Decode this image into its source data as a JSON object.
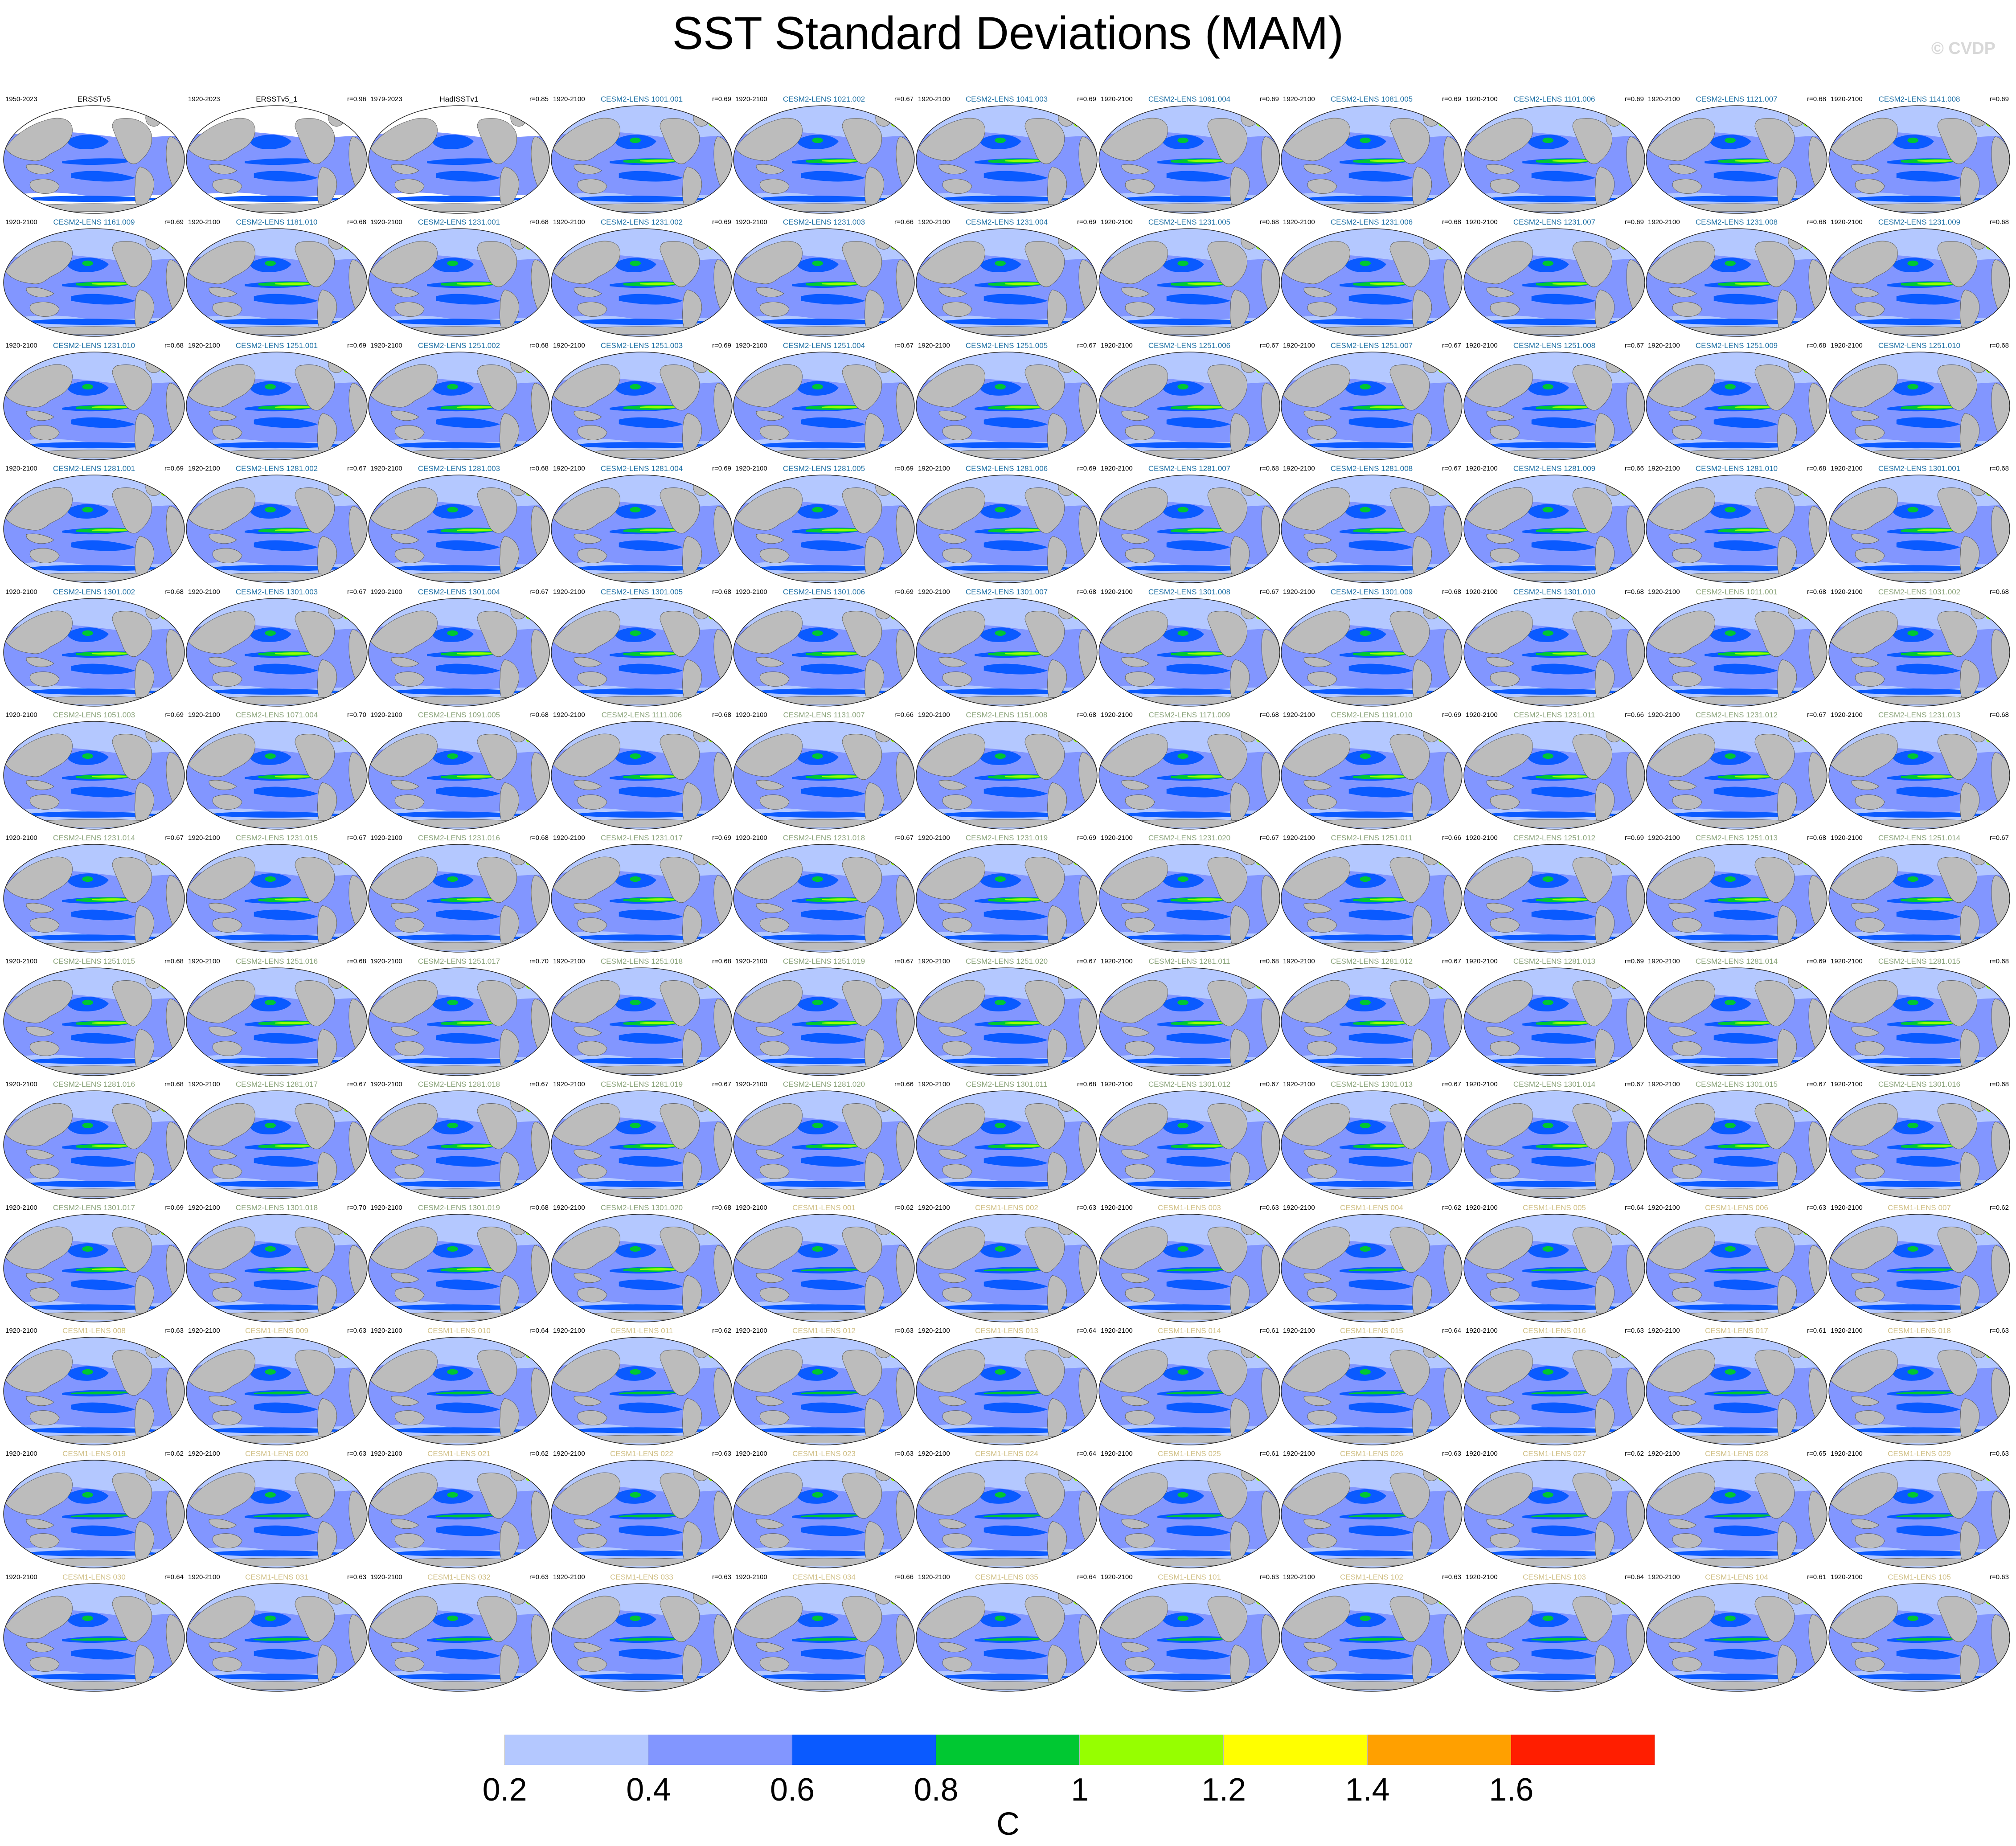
{
  "title": "SST Standard Deviations (MAM)",
  "copyright": "© CVDP",
  "legend": {
    "units": "C",
    "ticks": [
      "0.2",
      "0.4",
      "0.6",
      "0.8",
      "1",
      "1.2",
      "1.4",
      "1.6"
    ],
    "colors": [
      "#ffffff",
      "#b4c8ff",
      "#8296ff",
      "#0a5aff",
      "#00c832",
      "#96ff00",
      "#ffff00",
      "#ffa000",
      "#ff1e00"
    ]
  },
  "colors": {
    "land": "#bcbcbc",
    "ocean_low": "#b4c8ff",
    "ocean_mid": "#8296ff",
    "ocean_high": "#0a5aff",
    "obs_label": "#000000",
    "cesm2_smbb": "#1b6ea3",
    "cesm2_cmip6": "#8aa37a",
    "cesm1": "#d0bf85"
  },
  "panels": [
    {
      "period": "1950-2023",
      "name": "ERSSTv5",
      "r": ""
    },
    {
      "period": "1920-2023",
      "name": "ERSSTv5_1",
      "r": "r=0.96"
    },
    {
      "period": "1979-2023",
      "name": "HadISSTv1",
      "r": "r=0.85"
    },
    {
      "period": "1920-2100",
      "name": "CESM2-LENS 1001.001",
      "r": "r=0.69"
    },
    {
      "period": "1920-2100",
      "name": "CESM2-LENS 1021.002",
      "r": "r=0.67"
    },
    {
      "period": "1920-2100",
      "name": "CESM2-LENS 1041.003",
      "r": "r=0.69"
    },
    {
      "period": "1920-2100",
      "name": "CESM2-LENS 1061.004",
      "r": "r=0.69"
    },
    {
      "period": "1920-2100",
      "name": "CESM2-LENS 1081.005",
      "r": "r=0.69"
    },
    {
      "period": "1920-2100",
      "name": "CESM2-LENS 1101.006",
      "r": "r=0.69"
    },
    {
      "period": "1920-2100",
      "name": "CESM2-LENS 1121.007",
      "r": "r=0.68"
    },
    {
      "period": "1920-2100",
      "name": "CESM2-LENS 1141.008",
      "r": "r=0.69"
    },
    {
      "period": "1920-2100",
      "name": "CESM2-LENS 1161.009",
      "r": "r=0.69"
    },
    {
      "period": "1920-2100",
      "name": "CESM2-LENS 1181.010",
      "r": "r=0.68"
    },
    {
      "period": "1920-2100",
      "name": "CESM2-LENS 1231.001",
      "r": "r=0.68"
    },
    {
      "period": "1920-2100",
      "name": "CESM2-LENS 1231.002",
      "r": "r=0.69"
    },
    {
      "period": "1920-2100",
      "name": "CESM2-LENS 1231.003",
      "r": "r=0.66"
    },
    {
      "period": "1920-2100",
      "name": "CESM2-LENS 1231.004",
      "r": "r=0.69"
    },
    {
      "period": "1920-2100",
      "name": "CESM2-LENS 1231.005",
      "r": "r=0.68"
    },
    {
      "period": "1920-2100",
      "name": "CESM2-LENS 1231.006",
      "r": "r=0.68"
    },
    {
      "period": "1920-2100",
      "name": "CESM2-LENS 1231.007",
      "r": "r=0.69"
    },
    {
      "period": "1920-2100",
      "name": "CESM2-LENS 1231.008",
      "r": "r=0.68"
    },
    {
      "period": "1920-2100",
      "name": "CESM2-LENS 1231.009",
      "r": "r=0.68"
    },
    {
      "period": "1920-2100",
      "name": "CESM2-LENS 1231.010",
      "r": "r=0.68"
    },
    {
      "period": "1920-2100",
      "name": "CESM2-LENS 1251.001",
      "r": "r=0.69"
    },
    {
      "period": "1920-2100",
      "name": "CESM2-LENS 1251.002",
      "r": "r=0.68"
    },
    {
      "period": "1920-2100",
      "name": "CESM2-LENS 1251.003",
      "r": "r=0.69"
    },
    {
      "period": "1920-2100",
      "name": "CESM2-LENS 1251.004",
      "r": "r=0.67"
    },
    {
      "period": "1920-2100",
      "name": "CESM2-LENS 1251.005",
      "r": "r=0.67"
    },
    {
      "period": "1920-2100",
      "name": "CESM2-LENS 1251.006",
      "r": "r=0.67"
    },
    {
      "period": "1920-2100",
      "name": "CESM2-LENS 1251.007",
      "r": "r=0.67"
    },
    {
      "period": "1920-2100",
      "name": "CESM2-LENS 1251.008",
      "r": "r=0.67"
    },
    {
      "period": "1920-2100",
      "name": "CESM2-LENS 1251.009",
      "r": "r=0.68"
    },
    {
      "period": "1920-2100",
      "name": "CESM2-LENS 1251.010",
      "r": "r=0.68"
    },
    {
      "period": "1920-2100",
      "name": "CESM2-LENS 1281.001",
      "r": "r=0.69"
    },
    {
      "period": "1920-2100",
      "name": "CESM2-LENS 1281.002",
      "r": "r=0.67"
    },
    {
      "period": "1920-2100",
      "name": "CESM2-LENS 1281.003",
      "r": "r=0.68"
    },
    {
      "period": "1920-2100",
      "name": "CESM2-LENS 1281.004",
      "r": "r=0.69"
    },
    {
      "period": "1920-2100",
      "name": "CESM2-LENS 1281.005",
      "r": "r=0.69"
    },
    {
      "period": "1920-2100",
      "name": "CESM2-LENS 1281.006",
      "r": "r=0.69"
    },
    {
      "period": "1920-2100",
      "name": "CESM2-LENS 1281.007",
      "r": "r=0.68"
    },
    {
      "period": "1920-2100",
      "name": "CESM2-LENS 1281.008",
      "r": "r=0.67"
    },
    {
      "period": "1920-2100",
      "name": "CESM2-LENS 1281.009",
      "r": "r=0.66"
    },
    {
      "period": "1920-2100",
      "name": "CESM2-LENS 1281.010",
      "r": "r=0.68"
    },
    {
      "period": "1920-2100",
      "name": "CESM2-LENS 1301.001",
      "r": "r=0.68"
    },
    {
      "period": "1920-2100",
      "name": "CESM2-LENS 1301.002",
      "r": "r=0.68"
    },
    {
      "period": "1920-2100",
      "name": "CESM2-LENS 1301.003",
      "r": "r=0.67"
    },
    {
      "period": "1920-2100",
      "name": "CESM2-LENS 1301.004",
      "r": "r=0.67"
    },
    {
      "period": "1920-2100",
      "name": "CESM2-LENS 1301.005",
      "r": "r=0.68"
    },
    {
      "period": "1920-2100",
      "name": "CESM2-LENS 1301.006",
      "r": "r=0.69"
    },
    {
      "period": "1920-2100",
      "name": "CESM2-LENS 1301.007",
      "r": "r=0.68"
    },
    {
      "period": "1920-2100",
      "name": "CESM2-LENS 1301.008",
      "r": "r=0.67"
    },
    {
      "period": "1920-2100",
      "name": "CESM2-LENS 1301.009",
      "r": "r=0.68"
    },
    {
      "period": "1920-2100",
      "name": "CESM2-LENS 1301.010",
      "r": "r=0.68"
    },
    {
      "period": "1920-2100",
      "name": "CESM2-LENS 1011.001",
      "r": "r=0.68"
    },
    {
      "period": "1920-2100",
      "name": "CESM2-LENS 1031.002",
      "r": "r=0.68"
    },
    {
      "period": "1920-2100",
      "name": "CESM2-LENS 1051.003",
      "r": "r=0.69"
    },
    {
      "period": "1920-2100",
      "name": "CESM2-LENS 1071.004",
      "r": "r=0.70"
    },
    {
      "period": "1920-2100",
      "name": "CESM2-LENS 1091.005",
      "r": "r=0.68"
    },
    {
      "period": "1920-2100",
      "name": "CESM2-LENS 1111.006",
      "r": "r=0.68"
    },
    {
      "period": "1920-2100",
      "name": "CESM2-LENS 1131.007",
      "r": "r=0.66"
    },
    {
      "period": "1920-2100",
      "name": "CESM2-LENS 1151.008",
      "r": "r=0.68"
    },
    {
      "period": "1920-2100",
      "name": "CESM2-LENS 1171.009",
      "r": "r=0.68"
    },
    {
      "period": "1920-2100",
      "name": "CESM2-LENS 1191.010",
      "r": "r=0.69"
    },
    {
      "period": "1920-2100",
      "name": "CESM2-LENS 1231.011",
      "r": "r=0.66"
    },
    {
      "period": "1920-2100",
      "name": "CESM2-LENS 1231.012",
      "r": "r=0.67"
    },
    {
      "period": "1920-2100",
      "name": "CESM2-LENS 1231.013",
      "r": "r=0.68"
    },
    {
      "period": "1920-2100",
      "name": "CESM2-LENS 1231.014",
      "r": "r=0.67"
    },
    {
      "period": "1920-2100",
      "name": "CESM2-LENS 1231.015",
      "r": "r=0.67"
    },
    {
      "period": "1920-2100",
      "name": "CESM2-LENS 1231.016",
      "r": "r=0.68"
    },
    {
      "period": "1920-2100",
      "name": "CESM2-LENS 1231.017",
      "r": "r=0.69"
    },
    {
      "period": "1920-2100",
      "name": "CESM2-LENS 1231.018",
      "r": "r=0.67"
    },
    {
      "period": "1920-2100",
      "name": "CESM2-LENS 1231.019",
      "r": "r=0.69"
    },
    {
      "period": "1920-2100",
      "name": "CESM2-LENS 1231.020",
      "r": "r=0.67"
    },
    {
      "period": "1920-2100",
      "name": "CESM2-LENS 1251.011",
      "r": "r=0.66"
    },
    {
      "period": "1920-2100",
      "name": "CESM2-LENS 1251.012",
      "r": "r=0.69"
    },
    {
      "period": "1920-2100",
      "name": "CESM2-LENS 1251.013",
      "r": "r=0.68"
    },
    {
      "period": "1920-2100",
      "name": "CESM2-LENS 1251.014",
      "r": "r=0.67"
    },
    {
      "period": "1920-2100",
      "name": "CESM2-LENS 1251.015",
      "r": "r=0.68"
    },
    {
      "period": "1920-2100",
      "name": "CESM2-LENS 1251.016",
      "r": "r=0.68"
    },
    {
      "period": "1920-2100",
      "name": "CESM2-LENS 1251.017",
      "r": "r=0.70"
    },
    {
      "period": "1920-2100",
      "name": "CESM2-LENS 1251.018",
      "r": "r=0.68"
    },
    {
      "period": "1920-2100",
      "name": "CESM2-LENS 1251.019",
      "r": "r=0.67"
    },
    {
      "period": "1920-2100",
      "name": "CESM2-LENS 1251.020",
      "r": "r=0.67"
    },
    {
      "period": "1920-2100",
      "name": "CESM2-LENS 1281.011",
      "r": "r=0.68"
    },
    {
      "period": "1920-2100",
      "name": "CESM2-LENS 1281.012",
      "r": "r=0.67"
    },
    {
      "period": "1920-2100",
      "name": "CESM2-LENS 1281.013",
      "r": "r=0.69"
    },
    {
      "period": "1920-2100",
      "name": "CESM2-LENS 1281.014",
      "r": "r=0.69"
    },
    {
      "period": "1920-2100",
      "name": "CESM2-LENS 1281.015",
      "r": "r=0.68"
    },
    {
      "period": "1920-2100",
      "name": "CESM2-LENS 1281.016",
      "r": "r=0.68"
    },
    {
      "period": "1920-2100",
      "name": "CESM2-LENS 1281.017",
      "r": "r=0.67"
    },
    {
      "period": "1920-2100",
      "name": "CESM2-LENS 1281.018",
      "r": "r=0.67"
    },
    {
      "period": "1920-2100",
      "name": "CESM2-LENS 1281.019",
      "r": "r=0.67"
    },
    {
      "period": "1920-2100",
      "name": "CESM2-LENS 1281.020",
      "r": "r=0.66"
    },
    {
      "period": "1920-2100",
      "name": "CESM2-LENS 1301.011",
      "r": "r=0.68"
    },
    {
      "period": "1920-2100",
      "name": "CESM2-LENS 1301.012",
      "r": "r=0.67"
    },
    {
      "period": "1920-2100",
      "name": "CESM2-LENS 1301.013",
      "r": "r=0.67"
    },
    {
      "period": "1920-2100",
      "name": "CESM2-LENS 1301.014",
      "r": "r=0.67"
    },
    {
      "period": "1920-2100",
      "name": "CESM2-LENS 1301.015",
      "r": "r=0.67"
    },
    {
      "period": "1920-2100",
      "name": "CESM2-LENS 1301.016",
      "r": "r=0.68"
    },
    {
      "period": "1920-2100",
      "name": "CESM2-LENS 1301.017",
      "r": "r=0.69"
    },
    {
      "period": "1920-2100",
      "name": "CESM2-LENS 1301.018",
      "r": "r=0.70"
    },
    {
      "period": "1920-2100",
      "name": "CESM2-LENS 1301.019",
      "r": "r=0.68"
    },
    {
      "period": "1920-2100",
      "name": "CESM2-LENS 1301.020",
      "r": "r=0.68"
    },
    {
      "period": "1920-2100",
      "name": "CESM1-LENS 001",
      "r": "r=0.62"
    },
    {
      "period": "1920-2100",
      "name": "CESM1-LENS 002",
      "r": "r=0.63"
    },
    {
      "period": "1920-2100",
      "name": "CESM1-LENS 003",
      "r": "r=0.63"
    },
    {
      "period": "1920-2100",
      "name": "CESM1-LENS 004",
      "r": "r=0.62"
    },
    {
      "period": "1920-2100",
      "name": "CESM1-LENS 005",
      "r": "r=0.64"
    },
    {
      "period": "1920-2100",
      "name": "CESM1-LENS 006",
      "r": "r=0.63"
    },
    {
      "period": "1920-2100",
      "name": "CESM1-LENS 007",
      "r": "r=0.62"
    },
    {
      "period": "1920-2100",
      "name": "CESM1-LENS 008",
      "r": "r=0.63"
    },
    {
      "period": "1920-2100",
      "name": "CESM1-LENS 009",
      "r": "r=0.63"
    },
    {
      "period": "1920-2100",
      "name": "CESM1-LENS 010",
      "r": "r=0.64"
    },
    {
      "period": "1920-2100",
      "name": "CESM1-LENS 011",
      "r": "r=0.62"
    },
    {
      "period": "1920-2100",
      "name": "CESM1-LENS 012",
      "r": "r=0.63"
    },
    {
      "period": "1920-2100",
      "name": "CESM1-LENS 013",
      "r": "r=0.64"
    },
    {
      "period": "1920-2100",
      "name": "CESM1-LENS 014",
      "r": "r=0.61"
    },
    {
      "period": "1920-2100",
      "name": "CESM1-LENS 015",
      "r": "r=0.64"
    },
    {
      "period": "1920-2100",
      "name": "CESM1-LENS 016",
      "r": "r=0.63"
    },
    {
      "period": "1920-2100",
      "name": "CESM1-LENS 017",
      "r": "r=0.61"
    },
    {
      "period": "1920-2100",
      "name": "CESM1-LENS 018",
      "r": "r=0.63"
    },
    {
      "period": "1920-2100",
      "name": "CESM1-LENS 019",
      "r": "r=0.62"
    },
    {
      "period": "1920-2100",
      "name": "CESM1-LENS 020",
      "r": "r=0.63"
    },
    {
      "period": "1920-2100",
      "name": "CESM1-LENS 021",
      "r": "r=0.62"
    },
    {
      "period": "1920-2100",
      "name": "CESM1-LENS 022",
      "r": "r=0.63"
    },
    {
      "period": "1920-2100",
      "name": "CESM1-LENS 023",
      "r": "r=0.63"
    },
    {
      "period": "1920-2100",
      "name": "CESM1-LENS 024",
      "r": "r=0.64"
    },
    {
      "period": "1920-2100",
      "name": "CESM1-LENS 025",
      "r": "r=0.61"
    },
    {
      "period": "1920-2100",
      "name": "CESM1-LENS 026",
      "r": "r=0.63"
    },
    {
      "period": "1920-2100",
      "name": "CESM1-LENS 027",
      "r": "r=0.62"
    },
    {
      "period": "1920-2100",
      "name": "CESM1-LENS 028",
      "r": "r=0.65"
    },
    {
      "period": "1920-2100",
      "name": "CESM1-LENS 029",
      "r": "r=0.63"
    },
    {
      "period": "1920-2100",
      "name": "CESM1-LENS 030",
      "r": "r=0.64"
    },
    {
      "period": "1920-2100",
      "name": "CESM1-LENS 031",
      "r": "r=0.63"
    },
    {
      "period": "1920-2100",
      "name": "CESM1-LENS 032",
      "r": "r=0.63"
    },
    {
      "period": "1920-2100",
      "name": "CESM1-LENS 033",
      "r": "r=0.63"
    },
    {
      "period": "1920-2100",
      "name": "CESM1-LENS 034",
      "r": "r=0.66"
    },
    {
      "period": "1920-2100",
      "name": "CESM1-LENS 035",
      "r": "r=0.64"
    },
    {
      "period": "1920-2100",
      "name": "CESM1-LENS 101",
      "r": "r=0.63"
    },
    {
      "period": "1920-2100",
      "name": "CESM1-LENS 102",
      "r": "r=0.63"
    },
    {
      "period": "1920-2100",
      "name": "CESM1-LENS 103",
      "r": "r=0.64"
    },
    {
      "period": "1920-2100",
      "name": "CESM1-LENS 104",
      "r": "r=0.61"
    },
    {
      "period": "1920-2100",
      "name": "CESM1-LENS 105",
      "r": "r=0.63"
    }
  ]
}
